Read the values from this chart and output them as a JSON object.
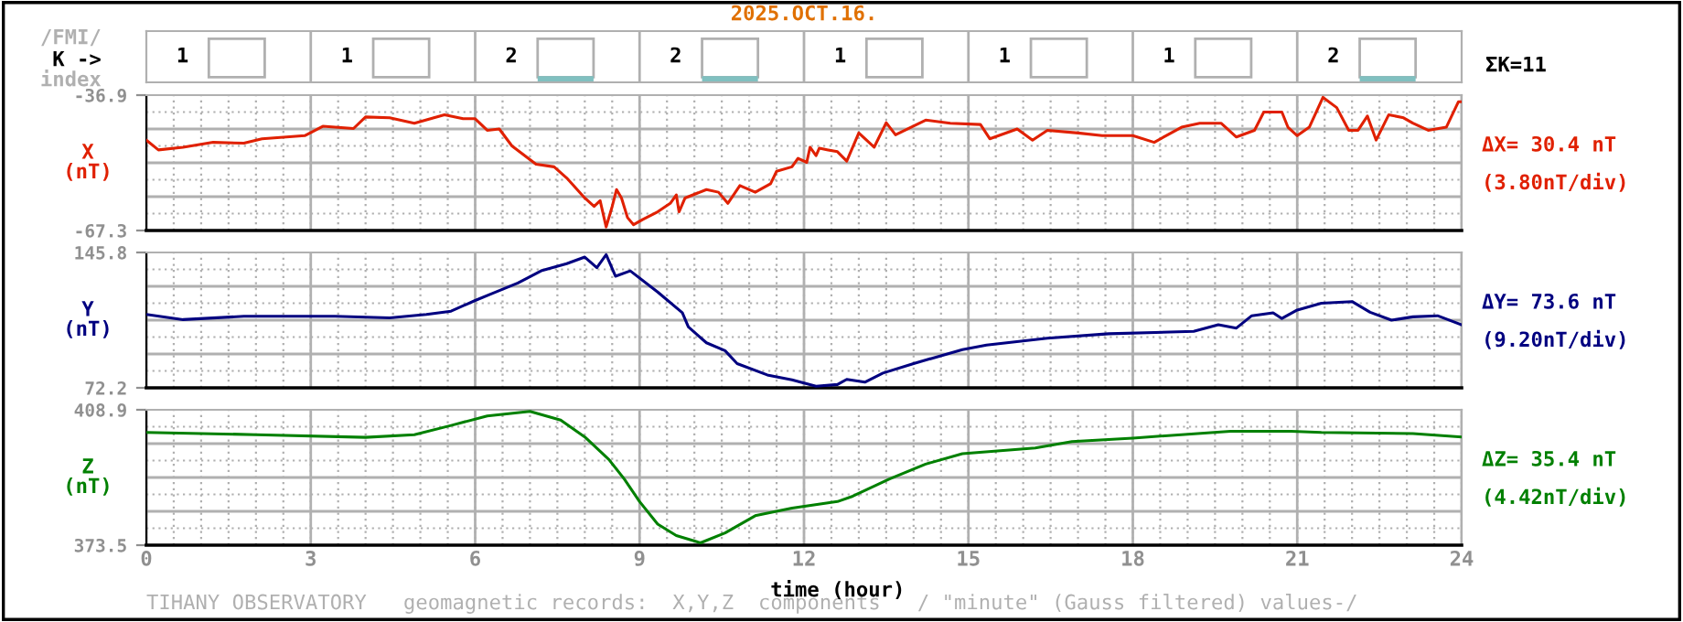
{
  "chart_data": [
    {
      "type": "other",
      "ylabel": "K ->",
      "annotations": [
        "/FMI/",
        "index",
        "ΣK=11"
      ],
      "values": [
        1,
        1,
        2,
        2,
        1,
        1,
        1,
        2
      ],
      "colors": [
        null,
        null,
        "#80c0c0",
        "#80c0c0",
        null,
        null,
        null,
        "#80c0c0"
      ],
      "data_labels": true,
      "title": "2025.OCT.16."
    },
    {
      "type": "line",
      "ylabel": "X\n(nT)",
      "annotations": [
        "ΔX= 30.4 nT",
        "(3.80nT/div)"
      ],
      "xlim": [
        0,
        24
      ],
      "xticks": [
        0,
        3,
        6,
        9,
        12,
        15,
        18,
        21,
        24
      ],
      "ylim": [
        -67.3,
        -36.9
      ],
      "yticks": [
        -36.9,
        -67.3
      ],
      "tick_labels": "y",
      "grid": true,
      "series": [
        {
          "color": "#e02000",
          "x": [
            0,
            0.22,
            0.67,
            1.22,
            1.78,
            2.11,
            2.89,
            3.22,
            3.78,
            4.0,
            4.44,
            4.89,
            5.44,
            5.78,
            6.0,
            6.22,
            6.44,
            6.67,
            7.11,
            7.44,
            7.67,
            8.0,
            8.17,
            8.28,
            8.39,
            8.5,
            8.58,
            8.67,
            8.78,
            8.89,
            9.06,
            9.33,
            9.56,
            9.67,
            9.72,
            9.83,
            10.22,
            10.44,
            10.61,
            10.83,
            11.11,
            11.39,
            11.5,
            11.78,
            11.89,
            12.05,
            12.11,
            12.22,
            12.28,
            12.44,
            12.61,
            12.78,
            13.0,
            13.28,
            13.5,
            13.67,
            14.22,
            14.67,
            15.22,
            15.39,
            15.89,
            16.17,
            16.44,
            17.0,
            17.44,
            18.0,
            18.39,
            18.89,
            19.22,
            19.61,
            19.89,
            20.22,
            20.39,
            20.72,
            20.83,
            21.0,
            21.22,
            21.47,
            21.72,
            21.94,
            22.11,
            22.28,
            22.44,
            22.67,
            22.94,
            23.11,
            23.39,
            23.72,
            23.94,
            24.0
          ],
          "values": [
            -47.0,
            -49.2,
            -48.6,
            -47.5,
            -47.7,
            -46.7,
            -46.0,
            -43.9,
            -44.4,
            -41.8,
            -42.0,
            -43.2,
            -41.3,
            -42.2,
            -42.2,
            -44.8,
            -44.5,
            -48.3,
            -52.4,
            -53.0,
            -55.5,
            -60.0,
            -61.9,
            -60.6,
            -66.5,
            -61.9,
            -58.1,
            -60.0,
            -64.4,
            -66.0,
            -64.8,
            -63.1,
            -61.2,
            -59.3,
            -63.1,
            -60.0,
            -58.1,
            -58.7,
            -61.2,
            -57.2,
            -58.7,
            -56.8,
            -54.0,
            -53.0,
            -51.1,
            -52.0,
            -48.6,
            -50.5,
            -48.8,
            -49.2,
            -49.6,
            -51.7,
            -45.4,
            -48.6,
            -43.1,
            -45.8,
            -42.5,
            -43.2,
            -43.5,
            -46.7,
            -44.5,
            -47.0,
            -44.8,
            -45.4,
            -46.0,
            -46.0,
            -47.5,
            -44.1,
            -43.2,
            -43.2,
            -46.3,
            -44.8,
            -40.7,
            -40.7,
            -44.1,
            -46.0,
            -44.1,
            -37.4,
            -39.7,
            -44.8,
            -44.8,
            -41.6,
            -47.0,
            -41.3,
            -42.0,
            -43.2,
            -44.8,
            -44.1,
            -38.4,
            -38.4
          ]
        }
      ]
    },
    {
      "type": "line",
      "ylabel": "Y\n(nT)",
      "annotations": [
        "ΔY= 73.6 nT",
        "(9.20nT/div)"
      ],
      "xlim": [
        0,
        24
      ],
      "xticks": [
        0,
        3,
        6,
        9,
        12,
        15,
        18,
        21,
        24
      ],
      "ylim": [
        72.2,
        145.8
      ],
      "yticks": [
        145.8,
        72.2
      ],
      "tick_labels": "y",
      "grid": true,
      "series": [
        {
          "color": "#000080",
          "x": [
            0,
            0.67,
            1.78,
            3.44,
            4.44,
            5.11,
            5.56,
            6.0,
            6.33,
            6.78,
            7.22,
            7.67,
            8.0,
            8.22,
            8.39,
            8.56,
            8.83,
            9.33,
            9.78,
            9.89,
            10.22,
            10.56,
            10.78,
            11.33,
            11.78,
            12.22,
            12.61,
            12.78,
            13.11,
            13.44,
            14.0,
            14.89,
            15.33,
            16.44,
            17.56,
            19.11,
            19.56,
            19.89,
            20.17,
            20.56,
            20.72,
            21.0,
            21.44,
            22.0,
            22.33,
            22.72,
            23.11,
            23.56,
            24.0
          ],
          "values": [
            112.1,
            109.3,
            111.1,
            111.1,
            110.2,
            112.1,
            113.9,
            119.7,
            123.7,
            129.2,
            136.0,
            139.7,
            143.3,
            137.5,
            144.6,
            132.9,
            135.8,
            124.3,
            113.0,
            105.3,
            96.7,
            92.4,
            85.4,
            79.2,
            76.5,
            73.1,
            74.0,
            76.8,
            75.3,
            80.2,
            85.4,
            93.0,
            95.5,
            99.2,
            101.6,
            102.9,
            106.5,
            104.7,
            111.4,
            113.0,
            109.9,
            114.5,
            118.2,
            119.1,
            113.3,
            109.0,
            110.8,
            111.4,
            106.5
          ]
        }
      ]
    },
    {
      "type": "line",
      "ylabel": "Z\n(nT)",
      "xlabel": "time (hour)",
      "annotations": [
        "ΔZ= 35.4 nT",
        "(4.42nT/div)",
        "TIHANY OBSERVATORY   geomagnetic records:  X,Y,Z  components   / \"minute\" (Gauss filtered) values-/"
      ],
      "xlim": [
        0,
        24
      ],
      "xticks": [
        0,
        3,
        6,
        9,
        12,
        15,
        18,
        21,
        24
      ],
      "ylim": [
        373.5,
        408.9
      ],
      "yticks": [
        408.9,
        373.5
      ],
      "grid": true,
      "series": [
        {
          "color": "#008000",
          "x": [
            0,
            2.0,
            4.0,
            4.89,
            5.56,
            6.22,
            7.0,
            7.56,
            8.0,
            8.44,
            8.72,
            9.0,
            9.33,
            9.67,
            10.11,
            10.56,
            11.11,
            11.78,
            12.61,
            12.89,
            13.56,
            14.22,
            14.89,
            16.22,
            16.89,
            18.0,
            19.78,
            20.89,
            21.44,
            23.11,
            24.0
          ],
          "values": [
            403.0,
            402.4,
            401.7,
            402.4,
            404.8,
            407.3,
            408.5,
            406.2,
            401.8,
            395.9,
            390.8,
            384.9,
            379.0,
            376.0,
            374.1,
            376.7,
            381.2,
            383.2,
            384.9,
            386.3,
            390.8,
            394.7,
            397.4,
            398.9,
            400.6,
            401.5,
            403.3,
            403.3,
            403.0,
            402.7,
            401.8
          ]
        }
      ]
    }
  ]
}
